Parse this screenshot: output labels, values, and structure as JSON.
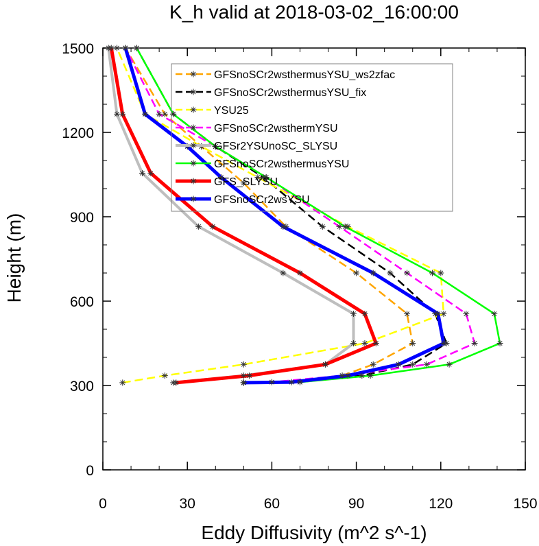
{
  "chart_data": {
    "type": "line",
    "title": "K_h valid at 2018-03-02_16:00:00",
    "xlabel": "Eddy Diffusivity (m^2 s^-1)",
    "ylabel": "Height (m)",
    "xlim": [
      0,
      150
    ],
    "ylim": [
      0,
      1500
    ],
    "x_ticks": [
      "0",
      "30",
      "60",
      "90",
      "120",
      "150"
    ],
    "y_ticks": [
      "0",
      "300",
      "600",
      "900",
      "1200",
      "1500"
    ],
    "grid": false,
    "legend_position": "top-center",
    "series": [
      {
        "name": "GFSnoSCr2wsthermusYSU_ws2zfac",
        "color": "#ffa500",
        "dash": "dashed",
        "width": "normal",
        "points": [
          [
            50,
            310
          ],
          [
            70,
            312
          ],
          [
            85,
            335
          ],
          [
            96,
            375
          ],
          [
            110,
            450
          ],
          [
            108,
            555
          ],
          [
            90,
            700
          ],
          [
            65,
            865
          ],
          [
            50,
            1020
          ],
          [
            35,
            1150
          ],
          [
            22,
            1265
          ],
          [
            8,
            1500
          ]
        ]
      },
      {
        "name": "GFSnoSCr2wsthermusYSU_fix",
        "color": "#000000",
        "dash": "dashed",
        "width": "normal",
        "points": [
          [
            50,
            310
          ],
          [
            70,
            312
          ],
          [
            92,
            335
          ],
          [
            110,
            375
          ],
          [
            122,
            450
          ],
          [
            118,
            555
          ],
          [
            102,
            700
          ],
          [
            78,
            865
          ],
          [
            57,
            1040
          ],
          [
            40,
            1150
          ],
          [
            25,
            1265
          ],
          [
            12,
            1500
          ]
        ]
      },
      {
        "name": "YSU25",
        "color": "#ffff00",
        "dash": "dashed",
        "width": "normal",
        "points": [
          [
            7,
            310
          ],
          [
            22,
            335
          ],
          [
            50,
            375
          ],
          [
            93,
            450
          ],
          [
            121,
            555
          ],
          [
            120,
            700
          ],
          [
            87,
            865
          ],
          [
            55,
            1040
          ],
          [
            35,
            1150
          ],
          [
            15,
            1265
          ],
          [
            5,
            1500
          ]
        ]
      },
      {
        "name": "GFSnoSCr2wsthermYSU",
        "color": "#ff00ff",
        "dash": "dashed",
        "width": "normal",
        "points": [
          [
            50,
            310
          ],
          [
            60,
            312
          ],
          [
            85,
            335
          ],
          [
            115,
            375
          ],
          [
            132,
            450
          ],
          [
            129,
            555
          ],
          [
            108,
            700
          ],
          [
            84,
            865
          ],
          [
            58,
            1040
          ],
          [
            40,
            1150
          ],
          [
            20,
            1265
          ],
          [
            8,
            1500
          ]
        ]
      },
      {
        "name": "GFSr2YSUnoSC_SLYSU",
        "color": "#bebebe",
        "dash": "solid",
        "width": "thick",
        "points": [
          [
            25,
            310
          ],
          [
            50,
            335
          ],
          [
            79,
            375
          ],
          [
            89,
            450
          ],
          [
            89,
            555
          ],
          [
            64,
            700
          ],
          [
            34,
            865
          ],
          [
            14,
            1055
          ],
          [
            5,
            1265
          ],
          [
            2,
            1500
          ]
        ]
      },
      {
        "name": "GFSnoSCr2wsthermusYSU",
        "color": "#00ff00",
        "dash": "solid",
        "width": "normal",
        "points": [
          [
            50,
            310
          ],
          [
            70,
            312
          ],
          [
            95,
            335
          ],
          [
            123,
            375
          ],
          [
            141,
            450
          ],
          [
            139,
            555
          ],
          [
            117,
            700
          ],
          [
            86,
            865
          ],
          [
            58,
            1040
          ],
          [
            40,
            1150
          ],
          [
            25,
            1265
          ],
          [
            12,
            1500
          ]
        ]
      },
      {
        "name": "GFS_SLYSU",
        "color": "#ff0000",
        "dash": "solid",
        "width": "heavy",
        "points": [
          [
            26,
            310
          ],
          [
            52,
            335
          ],
          [
            79,
            375
          ],
          [
            97,
            450
          ],
          [
            93,
            555
          ],
          [
            70,
            700
          ],
          [
            39,
            865
          ],
          [
            17,
            1055
          ],
          [
            7,
            1265
          ],
          [
            3,
            1500
          ]
        ]
      },
      {
        "name": "GFSnoSCr2wsYSU",
        "color": "#0000ff",
        "dash": "solid",
        "width": "heavy",
        "points": [
          [
            50,
            310
          ],
          [
            67,
            312
          ],
          [
            87,
            335
          ],
          [
            105,
            375
          ],
          [
            121,
            450
          ],
          [
            119,
            555
          ],
          [
            96,
            700
          ],
          [
            64,
            865
          ],
          [
            42,
            1040
          ],
          [
            30,
            1150
          ],
          [
            15,
            1265
          ],
          [
            8,
            1500
          ]
        ]
      }
    ]
  }
}
